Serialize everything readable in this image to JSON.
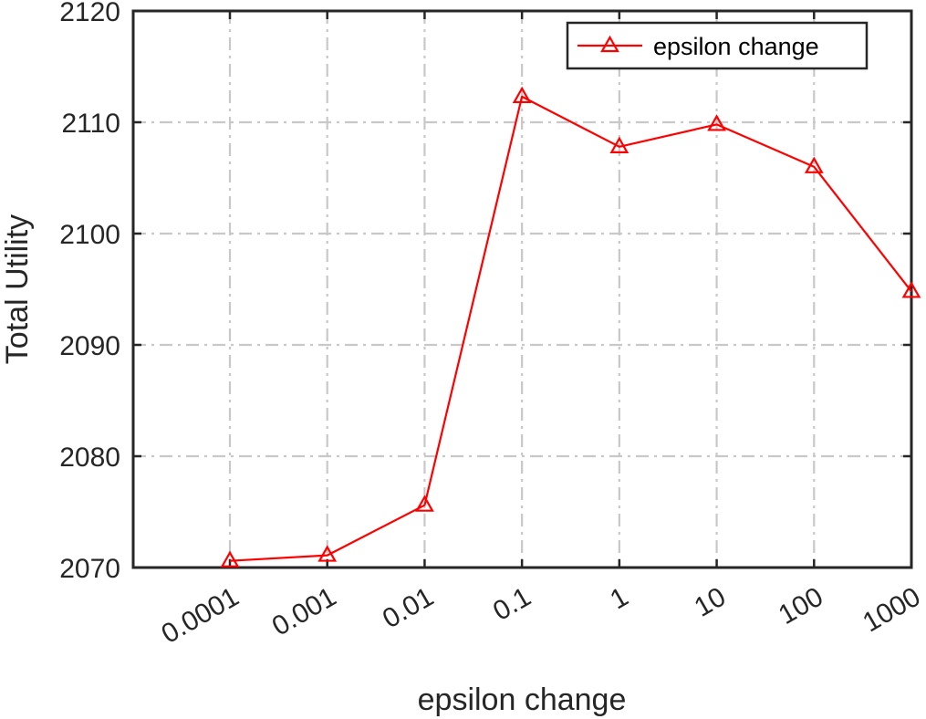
{
  "chart_data": {
    "type": "line",
    "title": "",
    "xlabel": "epsilon change",
    "ylabel": "Total Utility",
    "categories": [
      "0.0001",
      "0.001",
      "0.01",
      "0.1",
      "1",
      "10",
      "100",
      "1000"
    ],
    "series": [
      {
        "name": "epsilon change",
        "values": [
          2070.6,
          2071.1,
          2075.6,
          2112.3,
          2107.8,
          2109.8,
          2106.0,
          2094.8
        ],
        "color": "#ff0000",
        "marker": "triangle"
      }
    ],
    "ylim": [
      2070,
      2120
    ],
    "yticks": [
      2070,
      2080,
      2090,
      2100,
      2110,
      2120
    ],
    "grid": true,
    "legend_position": "top-right"
  }
}
